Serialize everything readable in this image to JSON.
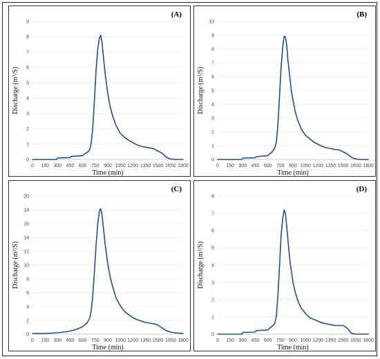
{
  "chart_data": [
    {
      "type": "line",
      "panel_label": "(A)",
      "xlabel": "Time (min)",
      "ylabel": "Discharge (m³/S)",
      "xticks": [
        0,
        150,
        300,
        450,
        600,
        750,
        900,
        1050,
        1200,
        1350,
        1500,
        1650,
        1800
      ],
      "xlim": [
        0,
        1800
      ],
      "ylim": [
        0,
        9
      ],
      "yticks": [
        0,
        1,
        2,
        3,
        4,
        5,
        6,
        7,
        8,
        9
      ],
      "grid": "horizontal",
      "series_color": "#1f4e8c",
      "x": [
        0,
        290,
        300,
        450,
        460,
        600,
        620,
        650,
        680,
        700,
        720,
        740,
        760,
        780,
        800,
        815,
        830,
        850,
        870,
        900,
        930,
        960,
        1000,
        1050,
        1100,
        1150,
        1200,
        1250,
        1300,
        1350,
        1400,
        1450,
        1500,
        1550,
        1600,
        1640,
        1700,
        1800
      ],
      "y": [
        0,
        0,
        0.1,
        0.12,
        0.2,
        0.25,
        0.35,
        0.45,
        0.6,
        1.0,
        2.0,
        3.8,
        5.8,
        7.2,
        7.9,
        8.1,
        7.7,
        6.6,
        5.5,
        4.3,
        3.4,
        2.8,
        2.2,
        1.7,
        1.45,
        1.25,
        1.1,
        0.95,
        0.85,
        0.8,
        0.75,
        0.7,
        0.55,
        0.4,
        0.15,
        0.05,
        0.0,
        0.0
      ]
    },
    {
      "type": "line",
      "panel_label": "(B)",
      "xlabel": "Time (min)",
      "ylabel": "Discharge (m³/S)",
      "xticks": [
        0,
        150,
        300,
        450,
        600,
        750,
        900,
        1050,
        1200,
        1350,
        1500,
        1650,
        1800
      ],
      "xlim": [
        0,
        1800
      ],
      "ylim": [
        0,
        10
      ],
      "yticks": [
        0,
        1,
        2,
        3,
        4,
        5,
        6,
        7,
        8,
        9,
        10
      ],
      "grid": "horizontal",
      "series_color": "#1f4e8c",
      "x": [
        0,
        290,
        300,
        450,
        460,
        600,
        620,
        650,
        680,
        700,
        720,
        740,
        760,
        780,
        795,
        810,
        825,
        840,
        860,
        880,
        900,
        930,
        960,
        1000,
        1050,
        1100,
        1150,
        1200,
        1250,
        1300,
        1350,
        1400,
        1450,
        1500,
        1550,
        1600,
        1640,
        1700,
        1800
      ],
      "y": [
        0,
        0,
        0.1,
        0.12,
        0.2,
        0.28,
        0.4,
        0.55,
        0.8,
        1.2,
        2.5,
        4.6,
        6.8,
        8.3,
        8.9,
        8.9,
        8.3,
        7.2,
        6.1,
        5.0,
        4.3,
        3.4,
        2.8,
        2.2,
        1.75,
        1.5,
        1.25,
        1.1,
        0.95,
        0.85,
        0.8,
        0.72,
        0.7,
        0.55,
        0.4,
        0.15,
        0.05,
        0.0,
        0.0
      ]
    },
    {
      "type": "line",
      "panel_label": "(C)",
      "xlabel": "Time (min)",
      "ylabel": "Discharge (m³/S)",
      "xticks": [
        0,
        150,
        300,
        450,
        600,
        750,
        900,
        1050,
        1200,
        1350,
        1500,
        1650,
        1800
      ],
      "xlim": [
        0,
        1800
      ],
      "ylim": [
        0,
        20
      ],
      "yticks": [
        0,
        2,
        4,
        6,
        8,
        10,
        12,
        14,
        16,
        18,
        20
      ],
      "grid": "horizontal",
      "series_color": "#1f4e8c",
      "x": [
        0,
        150,
        300,
        400,
        450,
        500,
        550,
        600,
        650,
        680,
        700,
        720,
        740,
        760,
        780,
        800,
        815,
        830,
        850,
        870,
        900,
        930,
        960,
        1000,
        1050,
        1100,
        1150,
        1200,
        1250,
        1300,
        1350,
        1400,
        1450,
        1500,
        1550,
        1600,
        1650,
        1700,
        1800
      ],
      "y": [
        0.1,
        0.1,
        0.2,
        0.35,
        0.45,
        0.6,
        0.8,
        1.1,
        1.6,
        2.2,
        3.2,
        5.5,
        9.0,
        12.8,
        16.0,
        17.8,
        18.2,
        17.4,
        15.2,
        12.8,
        10.2,
        8.2,
        6.8,
        5.2,
        4.1,
        3.3,
        2.8,
        2.4,
        2.1,
        1.9,
        1.7,
        1.6,
        1.5,
        1.3,
        0.9,
        0.5,
        0.3,
        0.2,
        0.1
      ]
    },
    {
      "type": "line",
      "panel_label": "(D)",
      "xlabel": "Time (min)",
      "ylabel": "Discharge (m³/S)",
      "xticks": [
        0,
        150,
        300,
        450,
        600,
        750,
        900,
        1050,
        1200,
        1350,
        1500,
        1650,
        1800
      ],
      "xlim": [
        0,
        1800
      ],
      "ylim": [
        0,
        8
      ],
      "yticks": [
        0,
        1,
        2,
        3,
        4,
        5,
        6,
        7,
        8
      ],
      "grid": "horizontal",
      "series_color": "#1f4e8c",
      "x": [
        0,
        290,
        300,
        450,
        460,
        600,
        620,
        650,
        680,
        700,
        720,
        740,
        760,
        780,
        795,
        810,
        825,
        845,
        865,
        880,
        900,
        930,
        960,
        1000,
        1050,
        1100,
        1150,
        1200,
        1250,
        1300,
        1350,
        1400,
        1450,
        1500,
        1550,
        1580,
        1600,
        1650,
        1700,
        1800
      ],
      "y": [
        0,
        0,
        0.1,
        0.12,
        0.2,
        0.25,
        0.35,
        0.45,
        0.6,
        1.0,
        2.2,
        4.0,
        5.8,
        6.8,
        7.2,
        7.0,
        6.3,
        5.2,
        4.2,
        3.7,
        3.0,
        2.4,
        1.9,
        1.5,
        1.2,
        0.95,
        0.85,
        0.75,
        0.65,
        0.6,
        0.55,
        0.5,
        0.5,
        0.5,
        0.35,
        0.15,
        0.05,
        0.0,
        0.0,
        0.0
      ]
    }
  ]
}
